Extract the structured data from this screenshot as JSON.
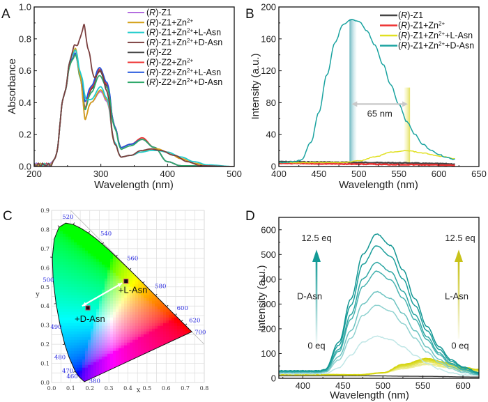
{
  "figure": {
    "panels": [
      "A",
      "B",
      "C",
      "D"
    ]
  },
  "chart_data": [
    {
      "panel": "A",
      "type": "line",
      "title": "",
      "xlabel": "Wavelength (nm)",
      "ylabel": "Absorbance",
      "xlim": [
        200,
        500
      ],
      "ylim": [
        0,
        1.0
      ],
      "xticks": [
        200,
        300,
        400,
        500
      ],
      "yticks": [
        "0.0",
        "0.2",
        "0.4",
        "0.6",
        "0.8",
        "1.0"
      ],
      "legend_position": "top-right",
      "series": [
        {
          "name": "(R)-Z1",
          "prefix": "(",
          "italic": "R",
          "suffix": ")-Z1",
          "sup": "",
          "tail": "",
          "color": "#b36ee0",
          "x": [
            200,
            225,
            232,
            245,
            255,
            262,
            270,
            276,
            285,
            300,
            310,
            320,
            330,
            345,
            360,
            375,
            385,
            400,
            420,
            440,
            460,
            500
          ],
          "y": [
            0.01,
            0.01,
            0.06,
            0.45,
            0.68,
            0.73,
            0.55,
            0.3,
            0.4,
            0.47,
            0.4,
            0.15,
            0.06,
            0.07,
            0.09,
            0.11,
            0.11,
            0.09,
            0.05,
            0.02,
            0.005,
            0
          ]
        },
        {
          "name": "(R)-Z1+Zn2+",
          "prefix": "(",
          "italic": "R",
          "suffix": ")-Z1+Zn",
          "sup": "2+",
          "tail": "",
          "color": "#d4a017",
          "x": [
            200,
            225,
            232,
            245,
            255,
            262,
            270,
            276,
            285,
            300,
            310,
            320,
            330,
            345,
            360,
            375,
            385,
            400,
            420,
            440,
            460,
            500
          ],
          "y": [
            0.01,
            0.01,
            0.06,
            0.45,
            0.68,
            0.74,
            0.55,
            0.3,
            0.4,
            0.48,
            0.41,
            0.15,
            0.06,
            0.07,
            0.09,
            0.11,
            0.11,
            0.09,
            0.05,
            0.02,
            0.005,
            0
          ]
        },
        {
          "name": "(R)-Z1+Zn2++L-Asn",
          "prefix": "(",
          "italic": "R",
          "suffix": ")-Z1+Zn",
          "sup": "2+",
          "tail": "+L-Asn",
          "color": "#20cccc",
          "x": [
            200,
            225,
            232,
            245,
            255,
            262,
            270,
            278,
            285,
            300,
            310,
            320,
            330,
            345,
            360,
            375,
            385,
            400,
            420,
            440,
            460,
            500
          ],
          "y": [
            0.01,
            0.01,
            0.06,
            0.45,
            0.68,
            0.73,
            0.58,
            0.42,
            0.42,
            0.5,
            0.42,
            0.16,
            0.06,
            0.07,
            0.09,
            0.1,
            0.1,
            0.09,
            0.06,
            0.03,
            0.01,
            0
          ]
        },
        {
          "name": "(R)-Z1+Zn2++D-Asn",
          "prefix": "(",
          "italic": "R",
          "suffix": ")-Z1+Zn",
          "sup": "2+",
          "tail": "+D-Asn",
          "color": "#7b3f3f",
          "x": [
            200,
            225,
            232,
            245,
            255,
            260,
            265,
            270,
            275,
            280,
            290,
            300,
            310,
            320,
            330,
            345,
            360,
            375,
            390,
            410,
            430,
            450,
            500
          ],
          "y": [
            0.01,
            0.01,
            0.06,
            0.45,
            0.68,
            0.76,
            0.76,
            0.82,
            0.89,
            0.75,
            0.56,
            0.6,
            0.46,
            0.15,
            0.06,
            0.07,
            0.1,
            0.11,
            0.1,
            0.07,
            0.03,
            0.005,
            0
          ]
        },
        {
          "name": "(R)-Z2",
          "prefix": "(",
          "italic": "R",
          "suffix": ")-Z2",
          "sup": "",
          "tail": "",
          "color": "#444444",
          "x": [
            200,
            225,
            232,
            245,
            255,
            262,
            270,
            276,
            285,
            298,
            310,
            320,
            330,
            345,
            362,
            380,
            400,
            420,
            500
          ],
          "y": [
            0.01,
            0.01,
            0.06,
            0.45,
            0.66,
            0.7,
            0.55,
            0.36,
            0.48,
            0.6,
            0.5,
            0.26,
            0.12,
            0.14,
            0.17,
            0.12,
            0.03,
            0.005,
            0
          ]
        },
        {
          "name": "(R)-Z2+Zn2+",
          "prefix": "(",
          "italic": "R",
          "suffix": ")-Z2+Zn",
          "sup": "2+",
          "tail": "",
          "color": "#ee3333",
          "x": [
            200,
            225,
            232,
            245,
            255,
            262,
            270,
            276,
            285,
            298,
            310,
            320,
            330,
            345,
            362,
            380,
            400,
            420,
            500
          ],
          "y": [
            0.01,
            0.01,
            0.06,
            0.45,
            0.66,
            0.71,
            0.55,
            0.37,
            0.49,
            0.61,
            0.51,
            0.26,
            0.12,
            0.14,
            0.18,
            0.12,
            0.03,
            0.005,
            0
          ]
        },
        {
          "name": "(R)-Z2+Zn2++L-Asn",
          "prefix": "(",
          "italic": "R",
          "suffix": ")-Z2+Zn",
          "sup": "2+",
          "tail": "+L-Asn",
          "color": "#2255dd",
          "x": [
            200,
            225,
            232,
            245,
            255,
            262,
            270,
            276,
            285,
            298,
            310,
            320,
            330,
            345,
            362,
            380,
            400,
            420,
            500
          ],
          "y": [
            0.01,
            0.01,
            0.06,
            0.45,
            0.66,
            0.71,
            0.56,
            0.41,
            0.5,
            0.62,
            0.52,
            0.26,
            0.12,
            0.14,
            0.17,
            0.12,
            0.03,
            0.005,
            0
          ]
        },
        {
          "name": "(R)-Z2+Zn2++D-Asn",
          "prefix": "(",
          "italic": "R",
          "suffix": ")-Z2+Zn",
          "sup": "2+",
          "tail": "+D-Asn",
          "color": "#2ea86a",
          "x": [
            200,
            225,
            232,
            245,
            255,
            262,
            270,
            276,
            285,
            298,
            310,
            320,
            330,
            345,
            362,
            380,
            400,
            420,
            500
          ],
          "y": [
            0.01,
            0.01,
            0.06,
            0.45,
            0.65,
            0.7,
            0.54,
            0.36,
            0.46,
            0.57,
            0.49,
            0.25,
            0.11,
            0.13,
            0.17,
            0.12,
            0.03,
            0.005,
            0
          ]
        }
      ]
    },
    {
      "panel": "B",
      "type": "line",
      "title": "",
      "xlabel": "Wavelength (nm)",
      "ylabel": "Intensity (a.u.)",
      "xlim": [
        400,
        650
      ],
      "ylim": [
        0,
        200
      ],
      "xticks": [
        400,
        450,
        500,
        550,
        600,
        650
      ],
      "yticks": [
        0,
        40,
        80,
        120,
        160,
        200
      ],
      "legend_position": "top-right",
      "annotations": {
        "shift_label": "65 nm",
        "band_1_nm": 490,
        "band_2_nm": 563,
        "band_1_color": "#6fb8c2",
        "band_2_color": "#e6e37a"
      },
      "series": [
        {
          "name": "(R)-Z1",
          "prefix": "(",
          "italic": "R",
          "suffix": ")-Z1",
          "sup": "",
          "tail": "",
          "color": "#444444",
          "x": [
            400,
            450,
            500,
            550,
            600,
            620
          ],
          "y": [
            6,
            5.5,
            5,
            4.5,
            3.5,
            3
          ]
        },
        {
          "name": "(R)-Z1+Zn2+",
          "prefix": "(",
          "italic": "R",
          "suffix": ")-Z1+Zn",
          "sup": "2+",
          "tail": "",
          "color": "#ee3333",
          "x": [
            400,
            450,
            500,
            550,
            600,
            620
          ],
          "y": [
            4,
            3.5,
            3,
            2.5,
            2,
            1.5
          ]
        },
        {
          "name": "(R)-Z1+Zn2++L-Asn",
          "prefix": "(",
          "italic": "R",
          "suffix": ")-Z1+Zn",
          "sup": "2+",
          "tail": "+L-Asn",
          "color": "#e0e020",
          "x": [
            400,
            450,
            480,
            500,
            520,
            540,
            560,
            580,
            600,
            620
          ],
          "y": [
            5,
            5,
            5,
            7,
            12,
            18,
            20,
            17,
            13,
            10
          ]
        },
        {
          "name": "(R)-Z1+Zn2++D-Asn",
          "prefix": "(",
          "italic": "R",
          "suffix": ")-Z1+Zn",
          "sup": "2+",
          "tail": "+D-Asn",
          "color": "#1aa3a0",
          "x": [
            400,
            420,
            428,
            440,
            450,
            460,
            470,
            480,
            490,
            500,
            510,
            520,
            530,
            540,
            550,
            560,
            570,
            580,
            590,
            600,
            610,
            620
          ],
          "y": [
            5,
            6,
            8,
            30,
            68,
            115,
            155,
            178,
            184,
            182,
            170,
            152,
            128,
            102,
            78,
            56,
            40,
            28,
            20,
            15,
            11,
            9
          ]
        }
      ]
    },
    {
      "panel": "C",
      "type": "scatter",
      "title": "",
      "xlabel": "x",
      "ylabel": "y",
      "xlim": [
        0.0,
        0.8
      ],
      "ylim": [
        0.0,
        0.9
      ],
      "xticks": [
        "0.0",
        "0.1",
        "0.2",
        "0.3",
        "0.4",
        "0.5",
        "0.6",
        "0.7",
        "0.8"
      ],
      "yticks": [
        "0.0",
        "0.1",
        "0.2",
        "0.3",
        "0.4",
        "0.5",
        "0.6",
        "0.7",
        "0.8",
        "0.9"
      ],
      "grid": true,
      "wavelength_labels": [
        {
          "nm": "380",
          "x": 0.174,
          "y": 0.005
        },
        {
          "nm": "460",
          "x": 0.144,
          "y": 0.03
        },
        {
          "nm": "470",
          "x": 0.124,
          "y": 0.058
        },
        {
          "nm": "480",
          "x": 0.091,
          "y": 0.133
        },
        {
          "nm": "490",
          "x": 0.045,
          "y": 0.295
        },
        {
          "nm": "500",
          "x": 0.008,
          "y": 0.538
        },
        {
          "nm": "520",
          "x": 0.074,
          "y": 0.834
        },
        {
          "nm": "540",
          "x": 0.23,
          "y": 0.754
        },
        {
          "nm": "560",
          "x": 0.373,
          "y": 0.624
        },
        {
          "nm": "580",
          "x": 0.512,
          "y": 0.487
        },
        {
          "nm": "600",
          "x": 0.627,
          "y": 0.372
        },
        {
          "nm": "620",
          "x": 0.691,
          "y": 0.308
        },
        {
          "nm": "700",
          "x": 0.735,
          "y": 0.265
        }
      ],
      "points": [
        {
          "label": "+L-Asn",
          "x": 0.39,
          "y": 0.53
        },
        {
          "label": "+D-Asn",
          "x": 0.19,
          "y": 0.39
        }
      ]
    },
    {
      "panel": "D",
      "type": "line",
      "title": "",
      "xlabel": "Wavelength (nm)",
      "ylabel": "Intensity (a.u.)",
      "xlim": [
        370,
        620
      ],
      "ylim": [
        0,
        650
      ],
      "xticks": [
        400,
        450,
        500,
        550,
        600
      ],
      "yticks": [
        0,
        100,
        200,
        300,
        400,
        500,
        600
      ],
      "annotations": {
        "left_top": "12.5 eq",
        "left_mid": "D-Asn",
        "left_bottom": "0 eq",
        "right_top": "12.5 eq",
        "right_mid": "L-Asn",
        "right_bottom": "0 eq",
        "left_arrow_color": "#129a96",
        "right_arrow_color": "#c8c21a"
      },
      "d_asn_peaks": [
        170,
        295,
        350,
        432,
        468,
        535,
        583
      ],
      "d_asn_colors": [
        "#bfe6e6",
        "#8fd2d0",
        "#6cc3c1",
        "#47b3b0",
        "#2ea7a4",
        "#1a9e9b",
        "#129693"
      ],
      "l_asn_peaks": [
        55,
        60,
        66,
        70,
        74,
        77,
        80
      ],
      "l_asn_colors": [
        "#eeee9a",
        "#e9e87c",
        "#e5e460",
        "#e0e045",
        "#dcdc30",
        "#d8d820",
        "#d4d410"
      ],
      "baseline_color": "#333333"
    }
  ]
}
